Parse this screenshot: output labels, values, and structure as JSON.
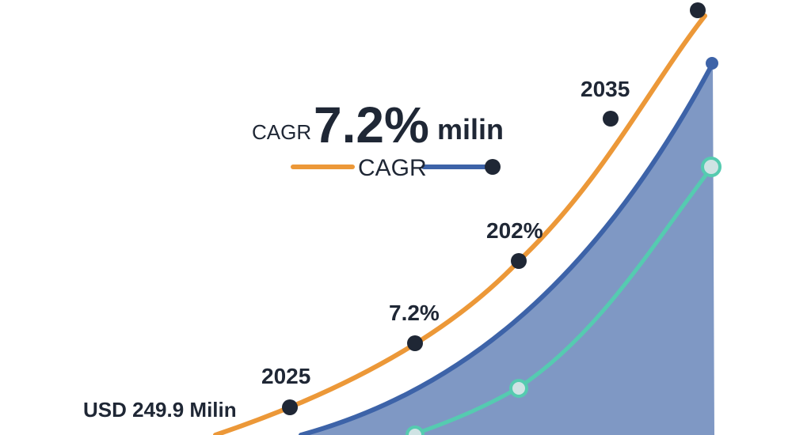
{
  "chart_data": {
    "type": "line",
    "title": "",
    "headline": {
      "prefix": "CAGR",
      "value": "7.2%",
      "suffix": "milin"
    },
    "legend_text": "CAGR",
    "annotations": {
      "start_value": "USD 249.9 Milin",
      "start_year": "2025",
      "pct_low": "7.2%",
      "pct_high": "202%",
      "end_year": "2035"
    },
    "colors": {
      "orange": "#ec9838",
      "blue": "#3d63a8",
      "blue_fill": "#7f98c4",
      "teal": "#55cbb0",
      "marker": "#1f2735"
    },
    "grid": false,
    "series": []
  }
}
